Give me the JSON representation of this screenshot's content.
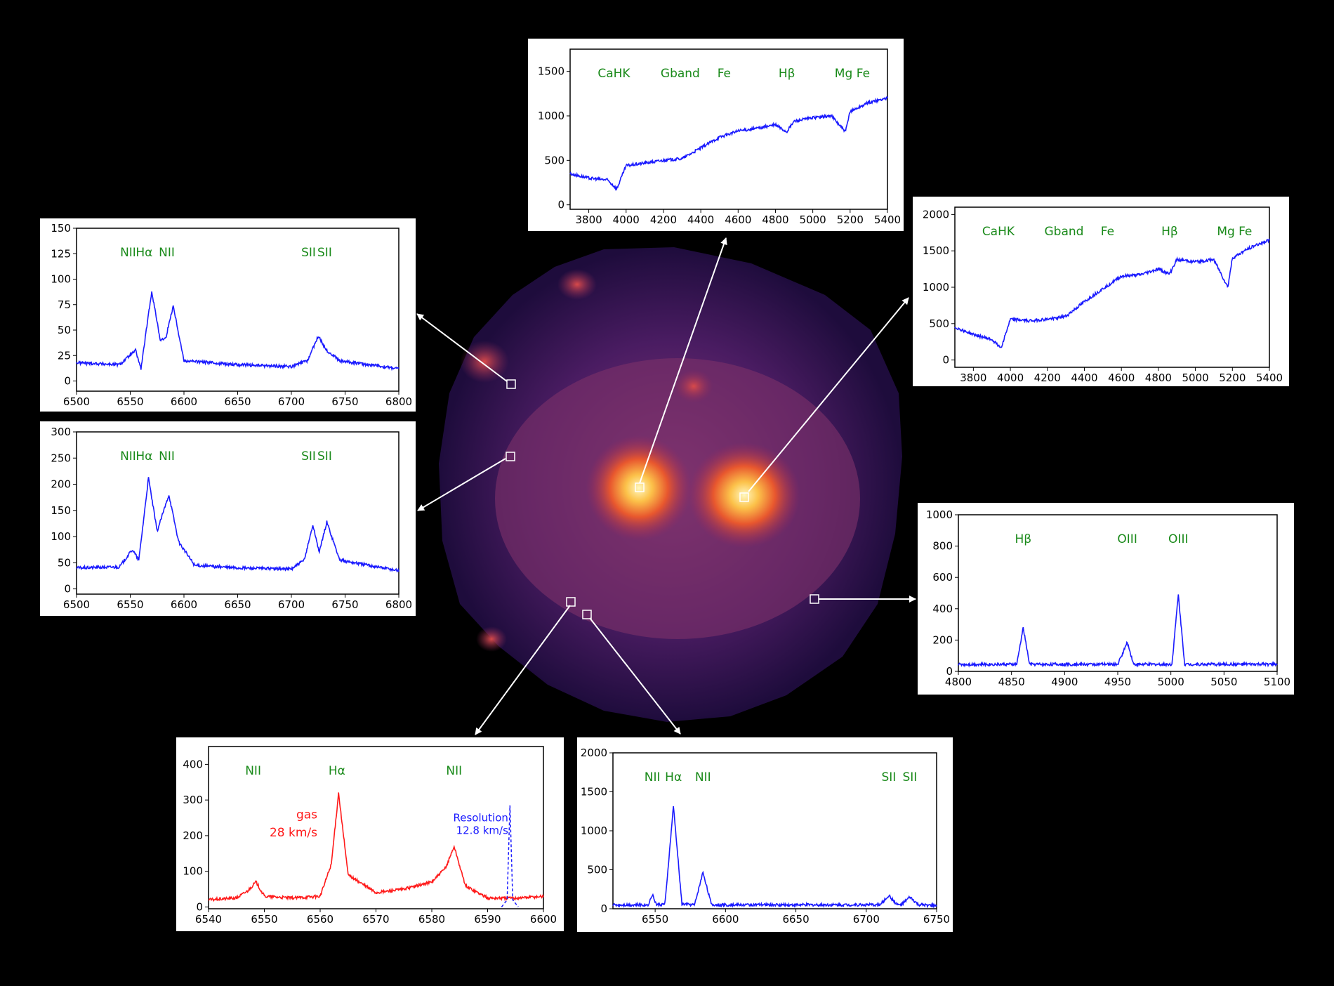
{
  "colors": {
    "spectrum": "#1a1aff",
    "gas": "#ff1a1a",
    "line_label": "#1a8a1a",
    "arrow": "#ffffff",
    "background": "#000000"
  },
  "chart_data": [
    {
      "id": "top",
      "type": "line",
      "x": [
        3700,
        3800,
        3900,
        3950,
        4000,
        4100,
        4200,
        4300,
        4400,
        4500,
        4600,
        4700,
        4800,
        4860,
        4900,
        5000,
        5100,
        5175,
        5200,
        5300,
        5400
      ],
      "y": [
        350,
        300,
        280,
        180,
        440,
        470,
        500,
        520,
        640,
        760,
        830,
        860,
        900,
        820,
        940,
        980,
        1000,
        820,
        1050,
        1150,
        1200
      ],
      "xlim": [
        3700,
        5400
      ],
      "ylim": [
        -50,
        1750
      ],
      "xticks": [
        3800,
        4000,
        4200,
        4400,
        4600,
        4800,
        5000,
        5200,
        5400
      ],
      "yticks": [
        0,
        500,
        1000,
        1500
      ],
      "lines": [
        {
          "label": "CaHK",
          "x": 3935
        },
        {
          "label": "Gband",
          "x": 4290
        },
        {
          "label": "Fe",
          "x": 4525
        },
        {
          "label": "Hβ",
          "x": 4861
        },
        {
          "label": "Mg",
          "x": 5165
        },
        {
          "label": "Fe",
          "x": 5270
        }
      ]
    },
    {
      "id": "right-top",
      "type": "line",
      "x": [
        3700,
        3800,
        3900,
        3950,
        4000,
        4100,
        4200,
        4300,
        4400,
        4500,
        4600,
        4700,
        4800,
        4860,
        4900,
        5000,
        5100,
        5175,
        5200,
        5300,
        5400
      ],
      "y": [
        450,
        350,
        280,
        170,
        560,
        540,
        560,
        600,
        800,
        980,
        1150,
        1170,
        1250,
        1180,
        1380,
        1350,
        1380,
        1000,
        1400,
        1550,
        1650
      ],
      "xlim": [
        3700,
        5400
      ],
      "ylim": [
        -100,
        2100
      ],
      "xticks": [
        3800,
        4000,
        4200,
        4400,
        4600,
        4800,
        5000,
        5200,
        5400
      ],
      "yticks": [
        0,
        500,
        1000,
        1500,
        2000
      ],
      "lines": [
        {
          "label": "CaHK",
          "x": 3935
        },
        {
          "label": "Gband",
          "x": 4290
        },
        {
          "label": "Fe",
          "x": 4525
        },
        {
          "label": "Hβ",
          "x": 4861
        },
        {
          "label": "Mg",
          "x": 5165
        },
        {
          "label": "Fe",
          "x": 5270
        }
      ]
    },
    {
      "id": "left-top",
      "type": "line",
      "x": [
        6500,
        6540,
        6555,
        6560,
        6570,
        6578,
        6583,
        6590,
        6600,
        6650,
        6700,
        6715,
        6725,
        6733,
        6745,
        6800
      ],
      "y": [
        18,
        16,
        30,
        12,
        88,
        40,
        42,
        74,
        20,
        16,
        14,
        20,
        44,
        30,
        20,
        12
      ],
      "xlim": [
        6500,
        6800
      ],
      "ylim": [
        -10,
        150
      ],
      "xticks": [
        6500,
        6550,
        6600,
        6650,
        6700,
        6750,
        6800
      ],
      "yticks": [
        0,
        25,
        50,
        75,
        100,
        125,
        150
      ],
      "lines": [
        {
          "label": "NII",
          "x": 6548
        },
        {
          "label": "Hα",
          "x": 6563
        },
        {
          "label": "NII",
          "x": 6584
        },
        {
          "label": "SII",
          "x": 6716
        },
        {
          "label": "SII",
          "x": 6731
        }
      ]
    },
    {
      "id": "left-bottom",
      "type": "line",
      "x": [
        6500,
        6540,
        6552,
        6558,
        6567,
        6575,
        6586,
        6595,
        6610,
        6650,
        6700,
        6712,
        6720,
        6726,
        6733,
        6745,
        6800
      ],
      "y": [
        40,
        42,
        75,
        55,
        212,
        110,
        180,
        90,
        45,
        40,
        38,
        55,
        122,
        70,
        128,
        55,
        35
      ],
      "xlim": [
        6500,
        6800
      ],
      "ylim": [
        -10,
        300
      ],
      "xticks": [
        6500,
        6550,
        6600,
        6650,
        6700,
        6750,
        6800
      ],
      "yticks": [
        0,
        50,
        100,
        150,
        200,
        250,
        300
      ],
      "lines": [
        {
          "label": "NII",
          "x": 6548
        },
        {
          "label": "Hα",
          "x": 6563
        },
        {
          "label": "NII",
          "x": 6584
        },
        {
          "label": "SII",
          "x": 6716
        },
        {
          "label": "SII",
          "x": 6731
        }
      ]
    },
    {
      "id": "right-bottom",
      "type": "line",
      "x": [
        4800,
        4855,
        4861,
        4867,
        4950,
        4959,
        4965,
        5001,
        5007,
        5013,
        5100
      ],
      "y": [
        45,
        45,
        280,
        45,
        45,
        185,
        45,
        45,
        490,
        45,
        45
      ],
      "xlim": [
        4800,
        5100
      ],
      "ylim": [
        0,
        1000
      ],
      "xticks": [
        4800,
        4850,
        4900,
        4950,
        5000,
        5050,
        5100
      ],
      "yticks": [
        0,
        200,
        400,
        600,
        800,
        1000
      ],
      "lines": [
        {
          "label": "Hβ",
          "x": 4861
        },
        {
          "label": "OIII",
          "x": 4959
        },
        {
          "label": "OIII",
          "x": 5007
        }
      ]
    },
    {
      "id": "bottom-left",
      "type": "line",
      "x": [
        6540,
        6545,
        6547,
        6548.5,
        6550,
        6555,
        6560,
        6562,
        6563.3,
        6565,
        6570,
        6575,
        6580,
        6582.5,
        6584,
        6586,
        6590,
        6595,
        6600
      ],
      "y": [
        20,
        25,
        45,
        70,
        30,
        25,
        30,
        120,
        320,
        90,
        40,
        50,
        70,
        110,
        170,
        60,
        25,
        25,
        30
      ],
      "xlim": [
        6540,
        6600
      ],
      "ylim": [
        -5,
        450
      ],
      "xticks": [
        6540,
        6550,
        6560,
        6570,
        6580,
        6590,
        6600
      ],
      "yticks": [
        0,
        100,
        200,
        300,
        400
      ],
      "lines": [
        {
          "label": "NII",
          "x": 6548
        },
        {
          "label": "Hα",
          "x": 6563
        },
        {
          "label": "NII",
          "x": 6584
        }
      ],
      "resolution_profile": {
        "x": [
          6592.5,
          6593.5,
          6594,
          6594.5,
          6595.5
        ],
        "y": [
          0,
          20,
          285,
          20,
          0
        ]
      },
      "notes": {
        "gas": "gas",
        "gas_width": "28 km/s",
        "resolution": "Resolution",
        "resolution_width": "12.8 km/s"
      }
    },
    {
      "id": "bottom-right",
      "type": "line",
      "x": [
        6520,
        6545,
        6548,
        6551,
        6557,
        6563,
        6569,
        6578,
        6584,
        6590,
        6650,
        6710,
        6716,
        6722,
        6725,
        6731,
        6737,
        6750
      ],
      "y": [
        50,
        50,
        180,
        50,
        60,
        1320,
        60,
        50,
        470,
        50,
        50,
        50,
        170,
        50,
        50,
        150,
        50,
        40
      ],
      "xlim": [
        6520,
        6750
      ],
      "ylim": [
        0,
        2000
      ],
      "xticks": [
        6550,
        6600,
        6650,
        6700,
        6750
      ],
      "yticks": [
        0,
        500,
        1000,
        1500,
        2000
      ],
      "lines": [
        {
          "label": "NII",
          "x": 6548
        },
        {
          "label": "Hα",
          "x": 6563
        },
        {
          "label": "NII",
          "x": 6584
        },
        {
          "label": "SII",
          "x": 6716
        },
        {
          "label": "SII",
          "x": 6731
        }
      ]
    }
  ]
}
